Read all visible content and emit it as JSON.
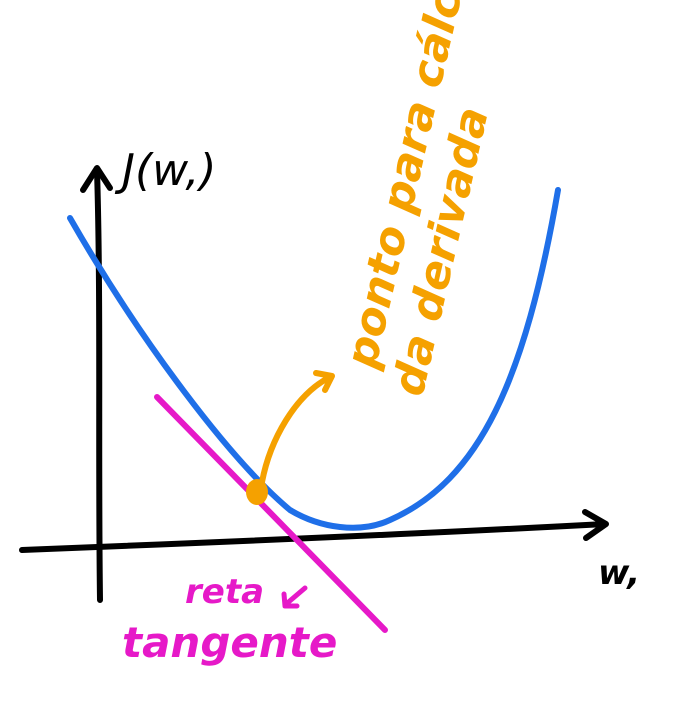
{
  "labels": {
    "y_axis": "J(w,)",
    "x_axis": "w,",
    "point_note_line1": "ponto para cálculo",
    "point_note_line2": "da derivada",
    "tangent_line1": "reta",
    "tangent_line2": "tangente"
  },
  "colors": {
    "axes": "#000000",
    "curve": "#1f6fe8",
    "tangent": "#e619c8",
    "point": "#f5a100"
  }
}
